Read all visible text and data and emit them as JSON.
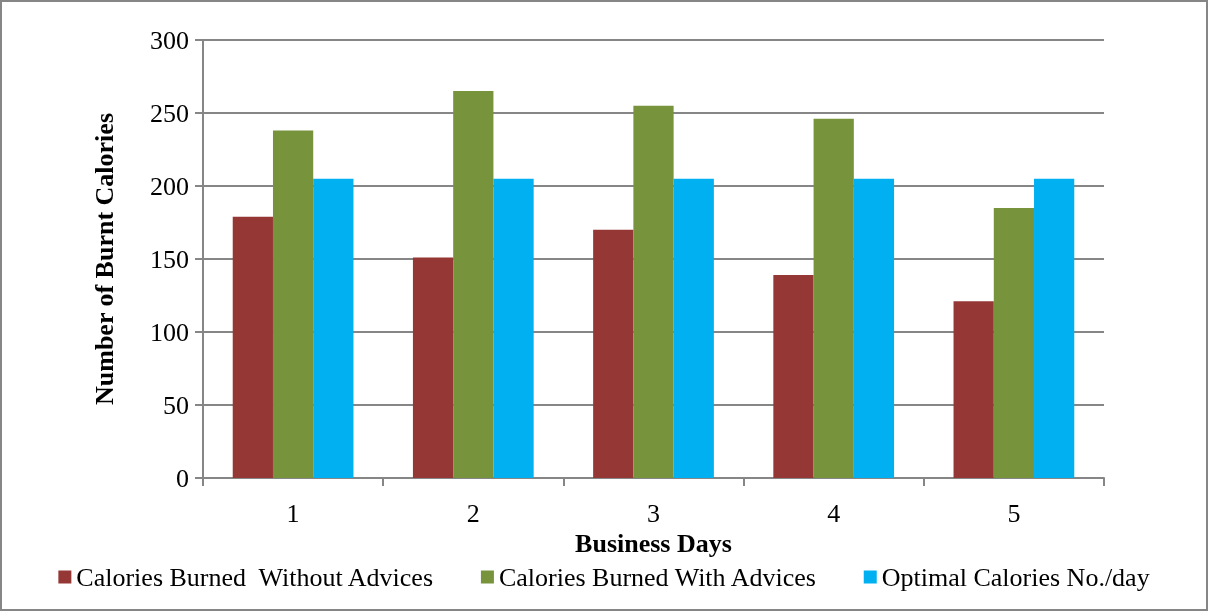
{
  "chart_data": {
    "type": "bar",
    "xlabel": "Business Days",
    "ylabel": "Number of Burnt Calories",
    "categories": [
      "1",
      "2",
      "3",
      "4",
      "5"
    ],
    "series": [
      {
        "name": "Calories Burned  Without Advices",
        "color": "#953735",
        "values": [
          179,
          151,
          170,
          139,
          121
        ]
      },
      {
        "name": "Calories Burned With Advices",
        "color": "#77933c",
        "values": [
          238,
          265,
          255,
          246,
          185
        ]
      },
      {
        "name": "Optimal Calories No./day",
        "color": "#00b0f0",
        "values": [
          205,
          205,
          205,
          205,
          205
        ]
      }
    ],
    "ylim": [
      0,
      300
    ],
    "yticks": [
      0,
      50,
      100,
      150,
      200,
      250,
      300
    ],
    "grid": "y",
    "legend": "bottom"
  }
}
